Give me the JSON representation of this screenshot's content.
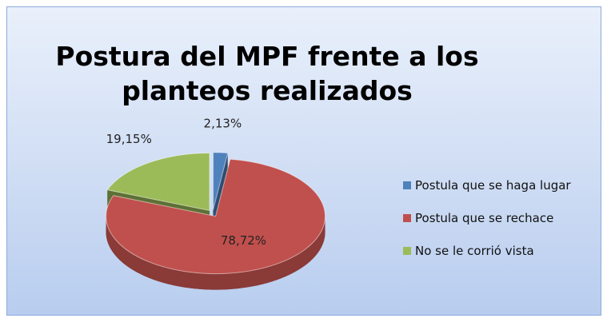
{
  "chart_data": {
    "type": "pie",
    "title": "Postura del MPF frente a los planteos realizados",
    "categories": [
      "Postula que se haga lugar",
      "Postula que se rechace",
      "No se le corrió vista"
    ],
    "values": [
      2.13,
      78.72,
      19.15
    ],
    "value_labels": [
      "2,13%",
      "78,72%",
      "19,15%"
    ],
    "colors": [
      "#4f81bd",
      "#c0504d",
      "#9bbb59"
    ],
    "legend": "right"
  }
}
